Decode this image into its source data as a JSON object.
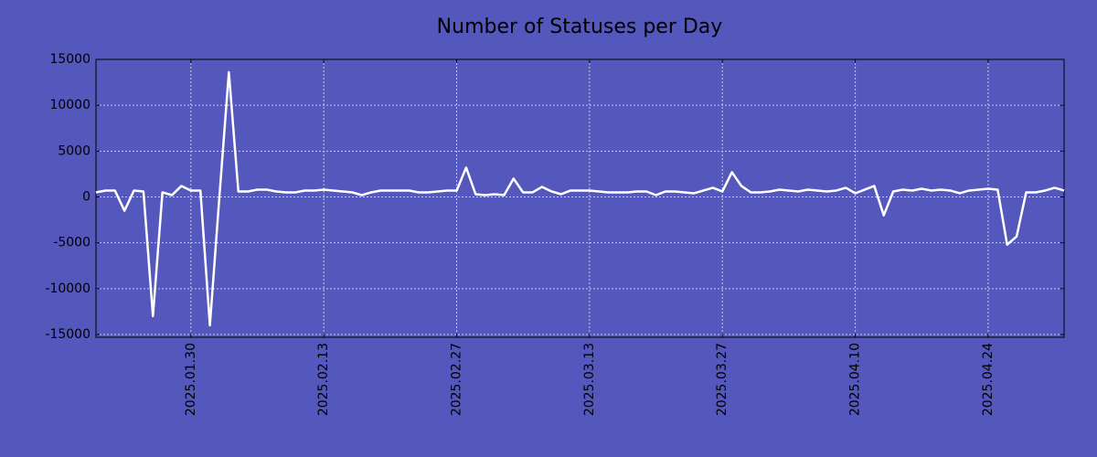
{
  "chart_data": {
    "type": "line",
    "title": "Number of Statuses per Day",
    "x": [
      "2025.01.20",
      "2025.01.21",
      "2025.01.22",
      "2025.01.23",
      "2025.01.24",
      "2025.01.25",
      "2025.01.26",
      "2025.01.27",
      "2025.01.28",
      "2025.01.29",
      "2025.01.30",
      "2025.01.31",
      "2025.02.01",
      "2025.02.02",
      "2025.02.03",
      "2025.02.04",
      "2025.02.05",
      "2025.02.06",
      "2025.02.07",
      "2025.02.08",
      "2025.02.09",
      "2025.02.10",
      "2025.02.11",
      "2025.02.12",
      "2025.02.13",
      "2025.02.14",
      "2025.02.15",
      "2025.02.16",
      "2025.02.17",
      "2025.02.18",
      "2025.02.19",
      "2025.02.20",
      "2025.02.21",
      "2025.02.22",
      "2025.02.23",
      "2025.02.24",
      "2025.02.25",
      "2025.02.26",
      "2025.02.27",
      "2025.02.28",
      "2025.03.01",
      "2025.03.02",
      "2025.03.03",
      "2025.03.04",
      "2025.03.05",
      "2025.03.06",
      "2025.03.07",
      "2025.03.08",
      "2025.03.09",
      "2025.03.10",
      "2025.03.11",
      "2025.03.12",
      "2025.03.13",
      "2025.03.14",
      "2025.03.15",
      "2025.03.16",
      "2025.03.17",
      "2025.03.18",
      "2025.03.19",
      "2025.03.20",
      "2025.03.21",
      "2025.03.22",
      "2025.03.23",
      "2025.03.24",
      "2025.03.25",
      "2025.03.26",
      "2025.03.27",
      "2025.03.28",
      "2025.03.29",
      "2025.03.30",
      "2025.03.31",
      "2025.04.01",
      "2025.04.02",
      "2025.04.03",
      "2025.04.04",
      "2025.04.05",
      "2025.04.06",
      "2025.04.07",
      "2025.04.08",
      "2025.04.09",
      "2025.04.10",
      "2025.04.11",
      "2025.04.12",
      "2025.04.13",
      "2025.04.14",
      "2025.04.15",
      "2025.04.16",
      "2025.04.17",
      "2025.04.18",
      "2025.04.19",
      "2025.04.20",
      "2025.04.21",
      "2025.04.22",
      "2025.04.23",
      "2025.04.24",
      "2025.04.25",
      "2025.04.26",
      "2025.04.27",
      "2025.04.28",
      "2025.04.29",
      "2025.04.30",
      "2025.05.01",
      "2025.05.02"
    ],
    "series": [
      {
        "color": "#ffffff",
        "values": [
          500,
          700,
          700,
          -1500,
          700,
          600,
          -13000,
          500,
          200,
          1200,
          700,
          700,
          -14000,
          0,
          13600,
          600,
          600,
          800,
          800,
          600,
          500,
          500,
          700,
          700,
          800,
          700,
          600,
          500,
          200,
          500,
          700,
          700,
          700,
          700,
          500,
          500,
          600,
          700,
          700,
          3200,
          300,
          200,
          300,
          200,
          2000,
          500,
          500,
          1100,
          600,
          300,
          700,
          700,
          700,
          600,
          500,
          500,
          500,
          600,
          600,
          200,
          600,
          600,
          500,
          400,
          700,
          1000,
          600,
          2700,
          1200,
          500,
          500,
          600,
          800,
          700,
          600,
          800,
          700,
          600,
          700,
          1000,
          400,
          800,
          1200,
          -2000,
          600,
          800,
          700,
          900,
          700,
          800,
          700,
          400,
          700,
          800,
          900,
          800,
          -5200,
          -4300,
          500,
          500,
          700,
          1000,
          700
        ]
      }
    ],
    "xlim": [
      "2025.01.20",
      "2025.05.02"
    ],
    "xticks": [
      "2025.01.30",
      "2025.02.13",
      "2025.02.27",
      "2025.03.13",
      "2025.03.27",
      "2025.04.10",
      "2025.04.24"
    ],
    "ylim": [
      -15300,
      15000
    ],
    "yticks": [
      -15000,
      -10000,
      -5000,
      0,
      5000,
      10000,
      15000
    ],
    "grid": true
  }
}
